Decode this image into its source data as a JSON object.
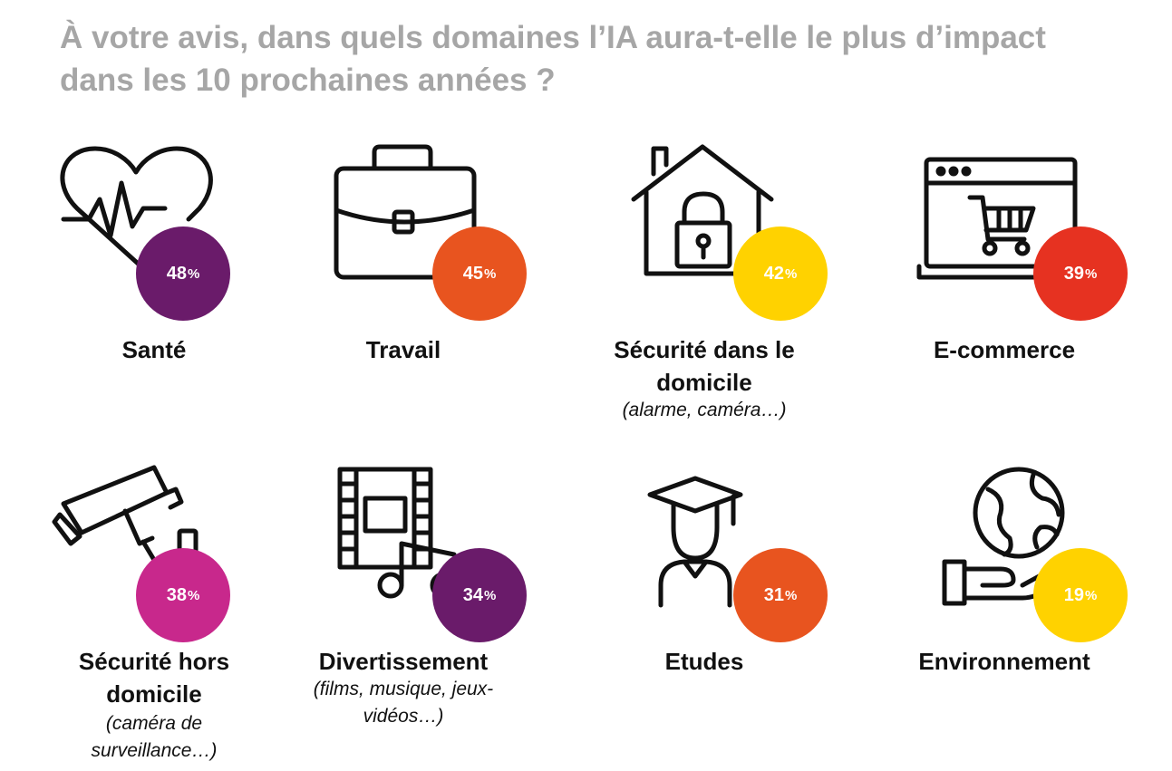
{
  "title_lines": [
    "À votre avis, dans quels domaines l’IA aura-t-elle le plus d’impact",
    "dans les 10 prochaines années ?"
  ],
  "items": [
    {
      "label_lines": [
        "Santé"
      ],
      "sub_lines": [],
      "value": "48",
      "unit": "%",
      "color": "#6a1b6a",
      "icon": "heart-pulse-icon"
    },
    {
      "label_lines": [
        "Travail"
      ],
      "sub_lines": [],
      "value": "45",
      "unit": "%",
      "color": "#e8541f",
      "icon": "briefcase-icon"
    },
    {
      "label_lines": [
        "Sécurité dans le",
        "domicile"
      ],
      "sub_lines": [
        "(alarme, caméra…)"
      ],
      "value": "42",
      "unit": "%",
      "color": "#ffd200",
      "icon": "house-lock-icon"
    },
    {
      "label_lines": [
        "E-commerce"
      ],
      "sub_lines": [],
      "value": "39",
      "unit": "%",
      "color": "#e63221",
      "icon": "laptop-cart-icon"
    },
    {
      "label_lines": [
        "Sécurité hors",
        "domicile"
      ],
      "sub_lines": [
        "(caméra de",
        "surveillance…)"
      ],
      "value": "38",
      "unit": "%",
      "color": "#c8288c",
      "icon": "security-camera-icon"
    },
    {
      "label_lines": [
        "Divertissement"
      ],
      "sub_lines": [
        "(films, musique, jeux-",
        "vidéos…)"
      ],
      "value": "34",
      "unit": "%",
      "color": "#6a1b6a",
      "icon": "film-music-icon"
    },
    {
      "label_lines": [
        "Etudes"
      ],
      "sub_lines": [],
      "value": "31",
      "unit": "%",
      "color": "#e8541f",
      "icon": "graduate-icon"
    },
    {
      "label_lines": [
        "Environnement"
      ],
      "sub_lines": [],
      "value": "19",
      "unit": "%",
      "color": "#ffd200",
      "icon": "earth-hand-icon"
    }
  ],
  "chart_data": {
    "type": "infographic",
    "title": "À votre avis, dans quels domaines l’IA aura-t-elle le plus d’impact dans les 10 prochaines années ?",
    "categories": [
      "Santé",
      "Travail",
      "Sécurité dans le domicile",
      "E-commerce",
      "Sécurité hors domicile",
      "Divertissement",
      "Etudes",
      "Environnement"
    ],
    "values": [
      48,
      45,
      42,
      39,
      38,
      34,
      31,
      19
    ],
    "unit": "%"
  }
}
